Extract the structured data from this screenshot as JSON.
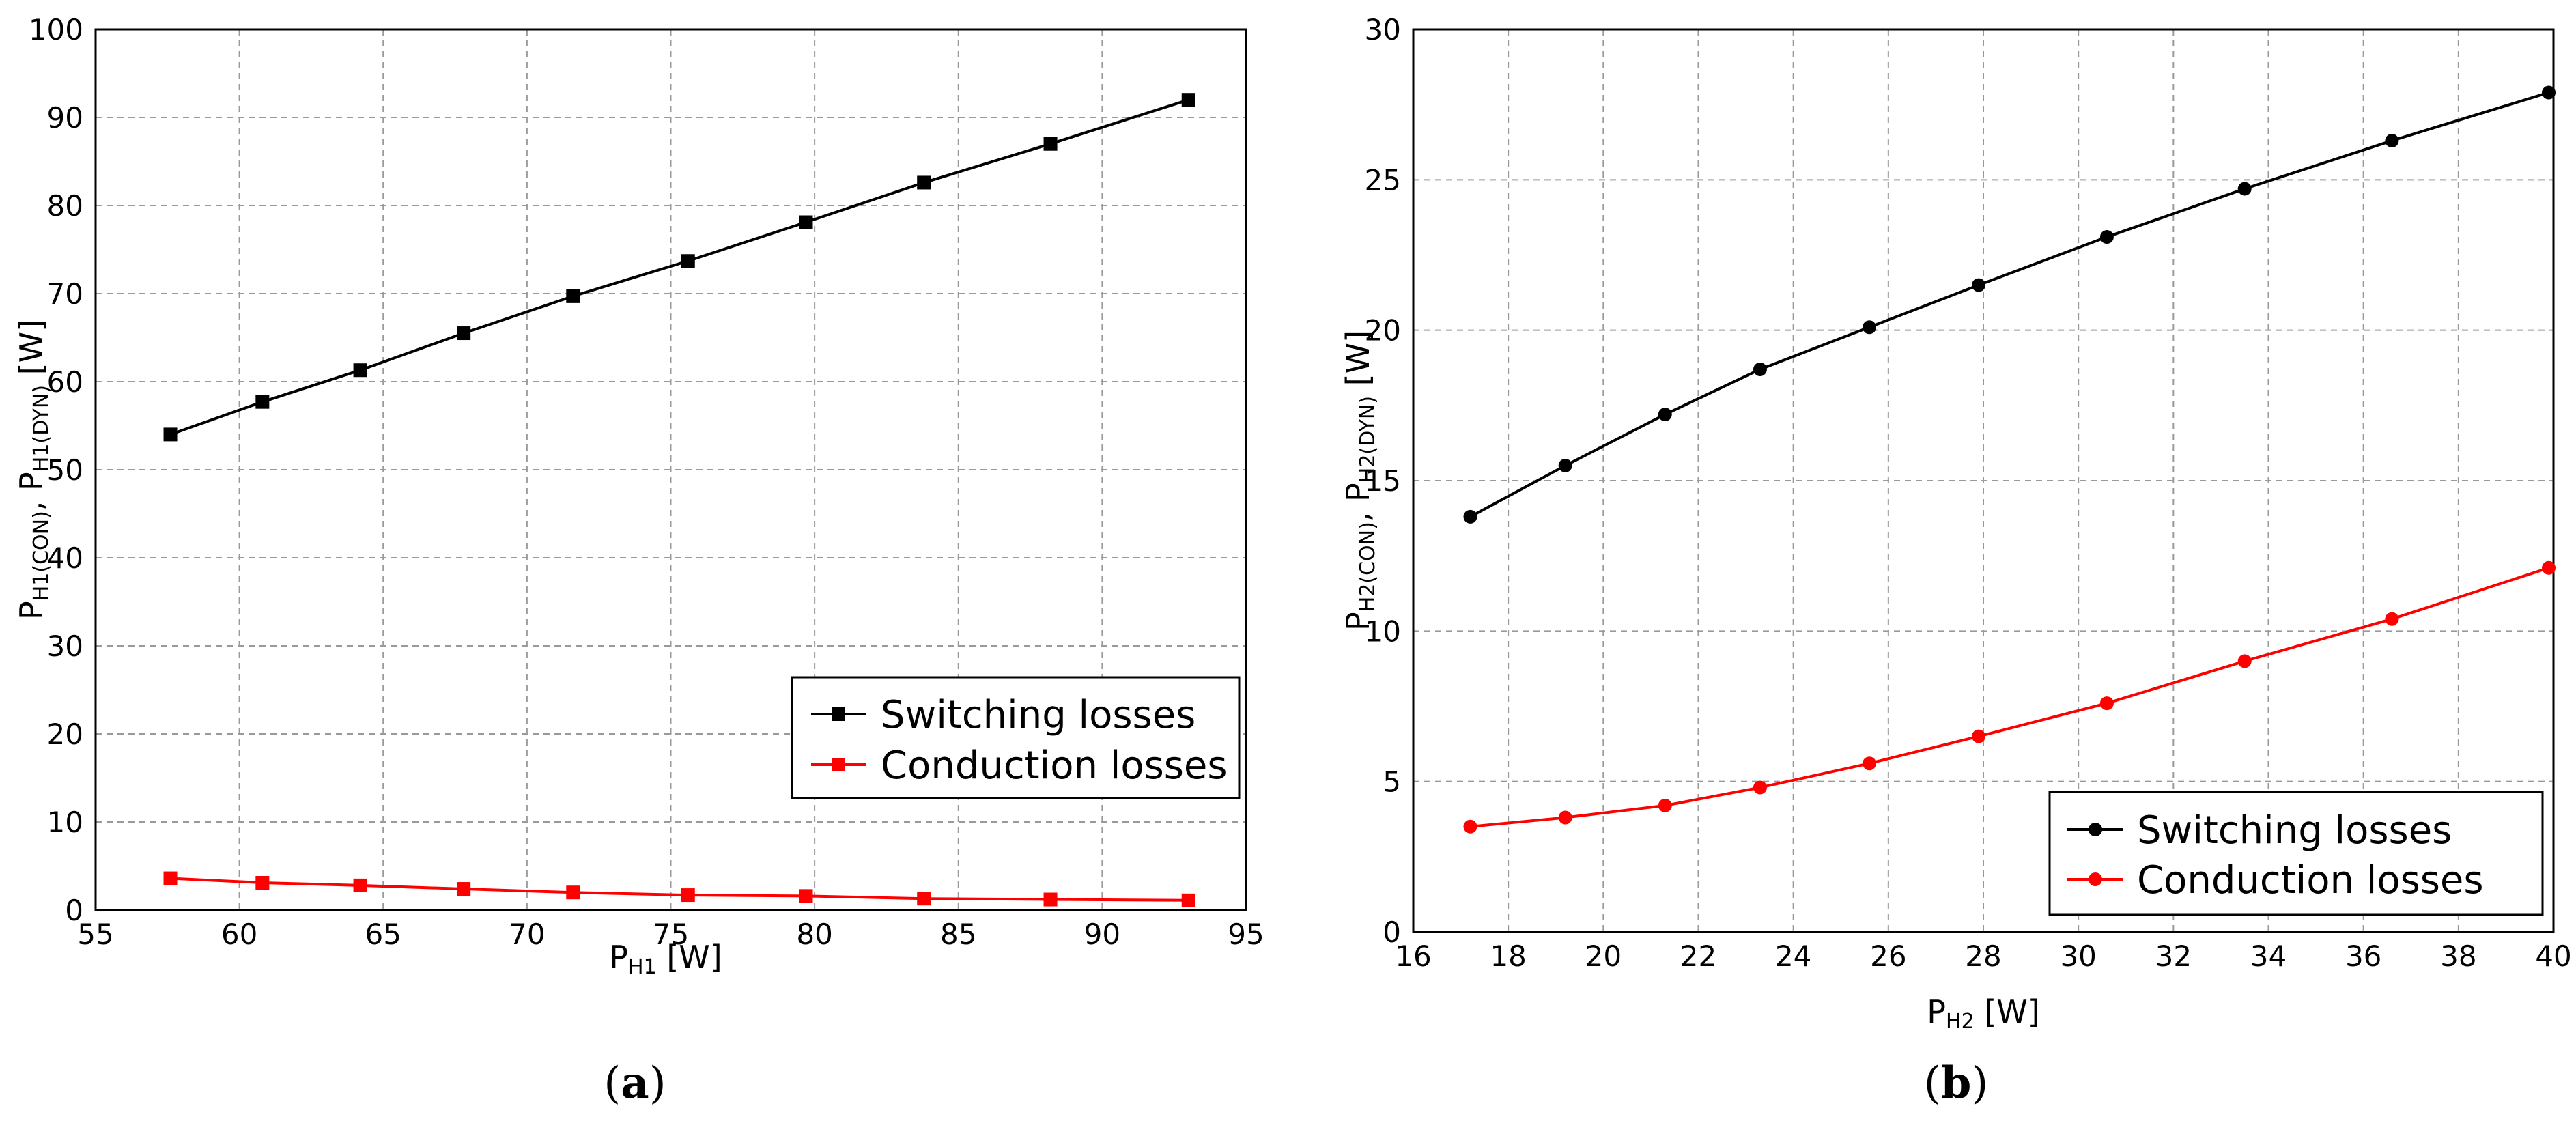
{
  "chart_data": [
    {
      "type": "line",
      "caption_letter": "a",
      "xlabel_main": "P",
      "xlabel_sub": "H1",
      "xlabel_unit": " [W]",
      "ylabel_p1": "P",
      "ylabel_s1": "H1(CON)",
      "ylabel_p2": ", P",
      "ylabel_s2": "H1(DYN)",
      "ylabel_unit": " [W]",
      "xlim": [
        55,
        95
      ],
      "ylim": [
        0,
        100
      ],
      "xticks": [
        "55",
        "60",
        "65",
        "70",
        "75",
        "80",
        "85",
        "90",
        "95"
      ],
      "yticks": [
        "0",
        "10",
        "20",
        "30",
        "40",
        "50",
        "60",
        "70",
        "80",
        "90",
        "100"
      ],
      "marker": "square",
      "legend_position": "lower-right",
      "series": [
        {
          "name": "Switching losses",
          "color": "#000000",
          "x": [
            57.6,
            60.8,
            64.2,
            67.8,
            71.6,
            75.6,
            79.7,
            83.8,
            88.2,
            93.0
          ],
          "y": [
            54.0,
            57.7,
            61.3,
            65.5,
            69.7,
            73.7,
            78.1,
            82.6,
            87.0,
            92.0
          ]
        },
        {
          "name": "Conduction losses",
          "color": "#ff0000",
          "x": [
            57.6,
            60.8,
            64.2,
            67.8,
            71.6,
            75.6,
            79.7,
            83.8,
            88.2,
            93.0
          ],
          "y": [
            3.6,
            3.1,
            2.8,
            2.4,
            2.0,
            1.7,
            1.6,
            1.3,
            1.2,
            1.1
          ]
        }
      ]
    },
    {
      "type": "line",
      "caption_letter": "b",
      "xlabel_main": "P",
      "xlabel_sub": "H2",
      "xlabel_unit": " [W]",
      "ylabel_p1": "P",
      "ylabel_s1": "H2(CON)",
      "ylabel_p2": ", P",
      "ylabel_s2": "H2(DYN)",
      "ylabel_unit": " [W]",
      "xlim": [
        16,
        40
      ],
      "ylim": [
        0,
        30
      ],
      "xticks": [
        "16",
        "18",
        "20",
        "22",
        "24",
        "26",
        "28",
        "30",
        "32",
        "34",
        "36",
        "38",
        "40"
      ],
      "yticks": [
        "0",
        "5",
        "10",
        "15",
        "20",
        "25",
        "30"
      ],
      "marker": "circle",
      "legend_position": "lower-right",
      "series": [
        {
          "name": "Switching losses",
          "color": "#000000",
          "x": [
            17.2,
            19.2,
            21.3,
            23.3,
            25.6,
            27.9,
            30.6,
            33.5,
            36.6,
            39.9
          ],
          "y": [
            13.8,
            15.5,
            17.2,
            18.7,
            20.1,
            21.5,
            23.1,
            24.7,
            26.3,
            27.9
          ]
        },
        {
          "name": "Conduction losses",
          "color": "#ff0000",
          "x": [
            17.2,
            19.2,
            21.3,
            23.3,
            25.6,
            27.9,
            30.6,
            33.5,
            36.6,
            39.9
          ],
          "y": [
            3.5,
            3.8,
            4.2,
            4.8,
            5.6,
            6.5,
            7.6,
            9.0,
            10.4,
            12.1
          ]
        }
      ]
    }
  ]
}
